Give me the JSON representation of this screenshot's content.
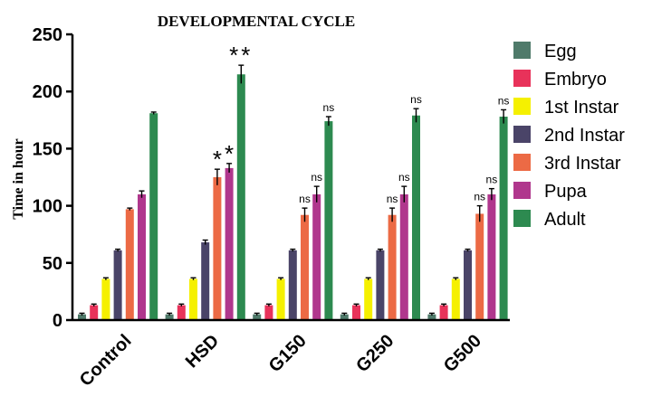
{
  "chart_data": {
    "type": "bar",
    "title": "DEVELOPMENTAL CYCLE",
    "ylabel": "Time in hour",
    "xlabel": "",
    "ylim": [
      0,
      250
    ],
    "yticks": [
      0,
      50,
      100,
      150,
      200,
      250
    ],
    "categories": [
      "Control",
      "HSD",
      "G150",
      "G250",
      "G500"
    ],
    "legend_position": "right",
    "series": [
      {
        "name": "Egg",
        "color": "#4f7a6a",
        "values": [
          5,
          5,
          5,
          5,
          5
        ],
        "errors": [
          1,
          1,
          1,
          1,
          1
        ],
        "annotations": [
          "",
          "",
          "",
          "",
          ""
        ]
      },
      {
        "name": "Embryo",
        "color": "#e8325a",
        "values": [
          13,
          13,
          13,
          13,
          13
        ],
        "errors": [
          1,
          1,
          1,
          1,
          1
        ],
        "annotations": [
          "",
          "",
          "",
          "",
          ""
        ]
      },
      {
        "name": "1st Instar",
        "color": "#f5f000",
        "values": [
          36,
          36,
          36,
          36,
          36
        ],
        "errors": [
          1,
          1,
          1,
          1,
          1
        ],
        "annotations": [
          "",
          "",
          "",
          "",
          ""
        ]
      },
      {
        "name": "2nd Instar",
        "color": "#4a4468",
        "values": [
          61,
          68,
          61,
          61,
          61
        ],
        "errors": [
          1,
          2,
          1,
          1,
          1
        ],
        "annotations": [
          "",
          "",
          "",
          "",
          ""
        ]
      },
      {
        "name": "3rd Instar",
        "color": "#ec6a45",
        "values": [
          97,
          125,
          92,
          92,
          93
        ],
        "errors": [
          1,
          7,
          6,
          6,
          7
        ],
        "annotations": [
          "",
          "*",
          "ns",
          "ns",
          "ns"
        ]
      },
      {
        "name": "Pupa",
        "color": "#b0378d",
        "values": [
          110,
          133,
          110,
          110,
          110
        ],
        "errors": [
          3,
          4,
          7,
          7,
          5
        ],
        "annotations": [
          "",
          "*",
          "ns",
          "ns",
          "ns"
        ]
      },
      {
        "name": "Adult",
        "color": "#2d8a50",
        "values": [
          181,
          215,
          174,
          179,
          178
        ],
        "errors": [
          1,
          8,
          4,
          6,
          6
        ],
        "annotations": [
          "",
          "**",
          "ns",
          "ns",
          "ns"
        ]
      }
    ]
  }
}
